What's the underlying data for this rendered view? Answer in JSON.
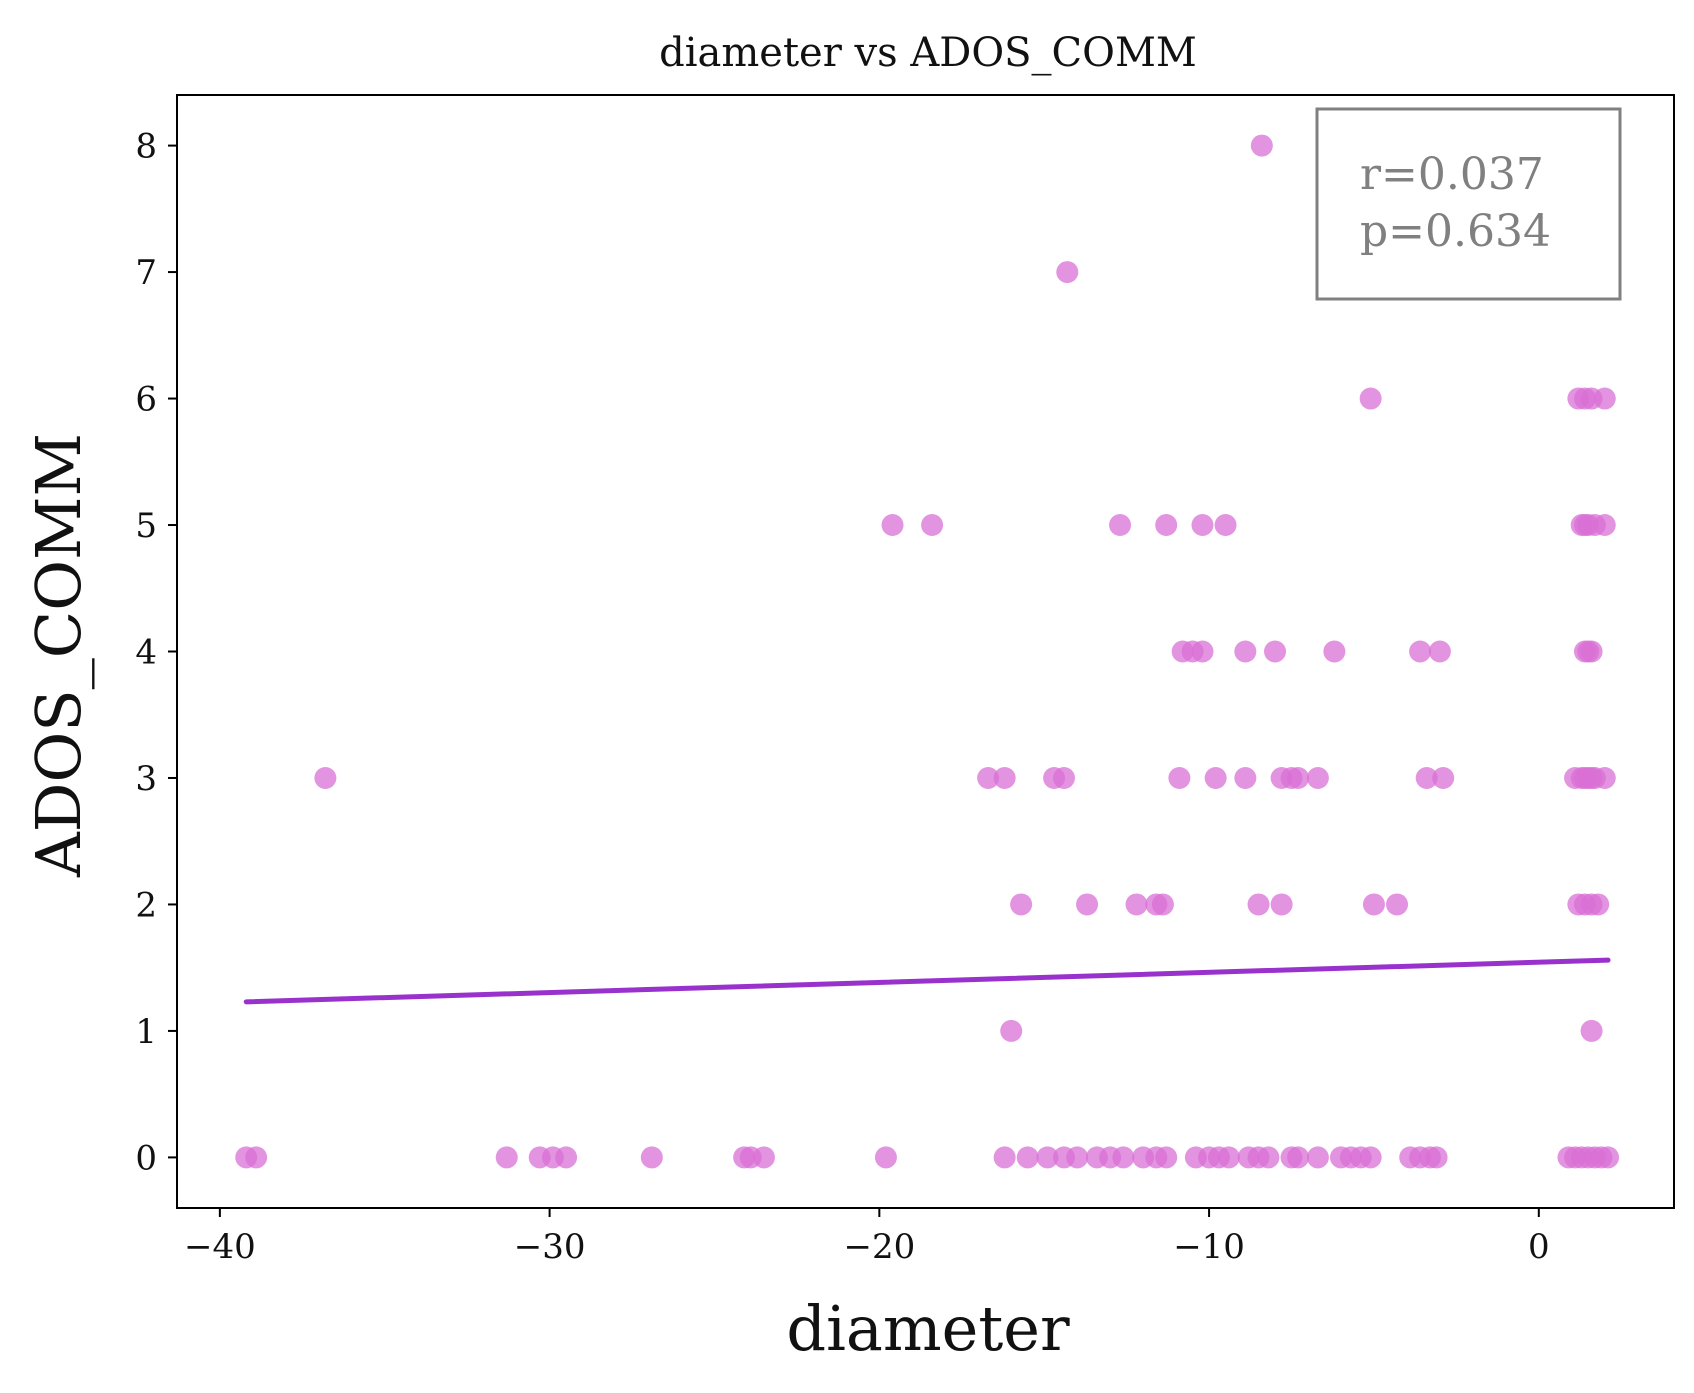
{
  "chart_data": {
    "type": "scatter",
    "title": "diameter vs ADOS_COMM",
    "xlabel": "diameter",
    "ylabel": "ADOS_COMM",
    "xlim": [
      -41.3,
      4.1
    ],
    "ylim": [
      -0.4,
      8.4
    ],
    "xticks": [
      -40,
      -30,
      -20,
      -10,
      0
    ],
    "xtick_labels": [
      "−40",
      "−30",
      "−20",
      "−10",
      "0"
    ],
    "yticks": [
      0,
      1,
      2,
      3,
      4,
      5,
      6,
      7,
      8
    ],
    "ytick_labels": [
      "0",
      "1",
      "2",
      "3",
      "4",
      "5",
      "6",
      "7",
      "8"
    ],
    "grid": false,
    "point_color": "#da70d6",
    "line_color": "#9932cc",
    "annotation": {
      "r_text": "r=0.037",
      "p_text": "p=0.634",
      "border_color": "#808080",
      "text_color": "#808080"
    },
    "fit_line": {
      "x": [
        -39.2,
        2.1
      ],
      "y": [
        1.23,
        1.56
      ]
    },
    "points": [
      {
        "x": -8.4,
        "y": 8
      },
      {
        "x": -14.3,
        "y": 7
      },
      {
        "x": -5.1,
        "y": 6
      },
      {
        "x": 1.2,
        "y": 6
      },
      {
        "x": 1.4,
        "y": 6
      },
      {
        "x": 1.6,
        "y": 6
      },
      {
        "x": 2.0,
        "y": 6
      },
      {
        "x": -19.6,
        "y": 5
      },
      {
        "x": -18.4,
        "y": 5
      },
      {
        "x": -12.7,
        "y": 5
      },
      {
        "x": -11.3,
        "y": 5
      },
      {
        "x": -10.2,
        "y": 5
      },
      {
        "x": -9.5,
        "y": 5
      },
      {
        "x": 1.3,
        "y": 5
      },
      {
        "x": 1.4,
        "y": 5
      },
      {
        "x": 1.5,
        "y": 5
      },
      {
        "x": 1.7,
        "y": 5
      },
      {
        "x": 2.0,
        "y": 5
      },
      {
        "x": -10.8,
        "y": 4
      },
      {
        "x": -10.5,
        "y": 4
      },
      {
        "x": -10.2,
        "y": 4
      },
      {
        "x": -8.9,
        "y": 4
      },
      {
        "x": -8.0,
        "y": 4
      },
      {
        "x": -6.2,
        "y": 4
      },
      {
        "x": -3.6,
        "y": 4
      },
      {
        "x": -3.0,
        "y": 4
      },
      {
        "x": 1.4,
        "y": 4
      },
      {
        "x": 1.5,
        "y": 4
      },
      {
        "x": 1.6,
        "y": 4
      },
      {
        "x": -36.8,
        "y": 3
      },
      {
        "x": -16.7,
        "y": 3
      },
      {
        "x": -16.2,
        "y": 3
      },
      {
        "x": -14.7,
        "y": 3
      },
      {
        "x": -14.4,
        "y": 3
      },
      {
        "x": -10.9,
        "y": 3
      },
      {
        "x": -9.8,
        "y": 3
      },
      {
        "x": -8.9,
        "y": 3
      },
      {
        "x": -7.8,
        "y": 3
      },
      {
        "x": -7.5,
        "y": 3
      },
      {
        "x": -7.3,
        "y": 3
      },
      {
        "x": -6.7,
        "y": 3
      },
      {
        "x": -3.4,
        "y": 3
      },
      {
        "x": -2.9,
        "y": 3
      },
      {
        "x": 1.1,
        "y": 3
      },
      {
        "x": 1.3,
        "y": 3
      },
      {
        "x": 1.4,
        "y": 3
      },
      {
        "x": 1.5,
        "y": 3
      },
      {
        "x": 1.6,
        "y": 3
      },
      {
        "x": 1.7,
        "y": 3
      },
      {
        "x": 2.0,
        "y": 3
      },
      {
        "x": -15.7,
        "y": 2
      },
      {
        "x": -13.7,
        "y": 2
      },
      {
        "x": -12.2,
        "y": 2
      },
      {
        "x": -11.6,
        "y": 2
      },
      {
        "x": -11.4,
        "y": 2
      },
      {
        "x": -8.5,
        "y": 2
      },
      {
        "x": -7.8,
        "y": 2
      },
      {
        "x": -5.0,
        "y": 2
      },
      {
        "x": -4.3,
        "y": 2
      },
      {
        "x": 1.2,
        "y": 2
      },
      {
        "x": 1.4,
        "y": 2
      },
      {
        "x": 1.6,
        "y": 2
      },
      {
        "x": 1.8,
        "y": 2
      },
      {
        "x": -16.0,
        "y": 1
      },
      {
        "x": 1.6,
        "y": 1
      },
      {
        "x": -39.2,
        "y": 0
      },
      {
        "x": -38.9,
        "y": 0
      },
      {
        "x": -31.3,
        "y": 0
      },
      {
        "x": -30.3,
        "y": 0
      },
      {
        "x": -29.9,
        "y": 0
      },
      {
        "x": -29.5,
        "y": 0
      },
      {
        "x": -26.9,
        "y": 0
      },
      {
        "x": -24.1,
        "y": 0
      },
      {
        "x": -23.9,
        "y": 0
      },
      {
        "x": -23.5,
        "y": 0
      },
      {
        "x": -19.8,
        "y": 0
      },
      {
        "x": -16.2,
        "y": 0
      },
      {
        "x": -15.5,
        "y": 0
      },
      {
        "x": -14.9,
        "y": 0
      },
      {
        "x": -14.4,
        "y": 0
      },
      {
        "x": -14.0,
        "y": 0
      },
      {
        "x": -13.4,
        "y": 0
      },
      {
        "x": -13.0,
        "y": 0
      },
      {
        "x": -12.6,
        "y": 0
      },
      {
        "x": -12.0,
        "y": 0
      },
      {
        "x": -11.6,
        "y": 0
      },
      {
        "x": -11.3,
        "y": 0
      },
      {
        "x": -10.4,
        "y": 0
      },
      {
        "x": -10.0,
        "y": 0
      },
      {
        "x": -9.7,
        "y": 0
      },
      {
        "x": -9.4,
        "y": 0
      },
      {
        "x": -8.8,
        "y": 0
      },
      {
        "x": -8.5,
        "y": 0
      },
      {
        "x": -8.2,
        "y": 0
      },
      {
        "x": -7.5,
        "y": 0
      },
      {
        "x": -7.3,
        "y": 0
      },
      {
        "x": -6.7,
        "y": 0
      },
      {
        "x": -6.0,
        "y": 0
      },
      {
        "x": -5.7,
        "y": 0
      },
      {
        "x": -5.4,
        "y": 0
      },
      {
        "x": -5.1,
        "y": 0
      },
      {
        "x": -3.9,
        "y": 0
      },
      {
        "x": -3.6,
        "y": 0
      },
      {
        "x": -3.3,
        "y": 0
      },
      {
        "x": -3.1,
        "y": 0
      },
      {
        "x": 0.9,
        "y": 0
      },
      {
        "x": 1.1,
        "y": 0
      },
      {
        "x": 1.3,
        "y": 0
      },
      {
        "x": 1.5,
        "y": 0
      },
      {
        "x": 1.7,
        "y": 0
      },
      {
        "x": 1.9,
        "y": 0
      },
      {
        "x": 2.1,
        "y": 0
      }
    ]
  }
}
